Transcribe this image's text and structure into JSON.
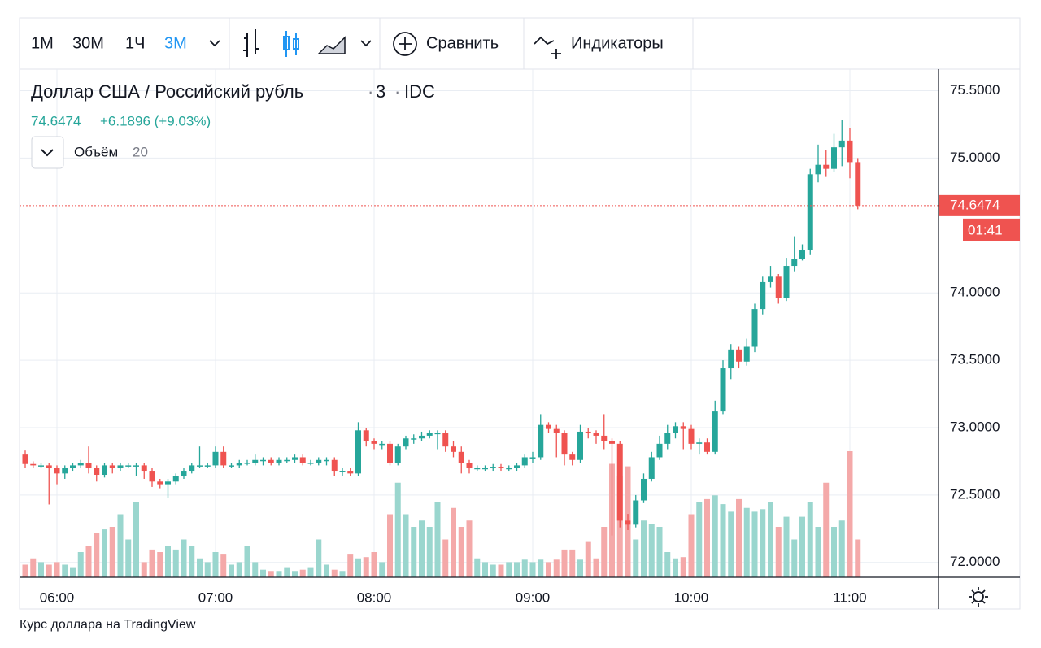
{
  "toolbar": {
    "intervals": [
      "1M",
      "30M",
      "1Ч",
      "3M"
    ],
    "compare": "Сравнить",
    "indicators": "Индикаторы"
  },
  "caption": "Курс доллара на TradingView",
  "chart_data": {
    "type": "candlestick",
    "title": "Доллар США / Российский рубль",
    "interval": "3",
    "source": "IDC",
    "change": "+6.1896 (+9.03%)",
    "volume_label": "Объём",
    "volume_length": "20",
    "countdown": "01:41",
    "up_color": "#26a69a",
    "down_color": "#ef5350",
    "volume_up_color": "#9ad6ce",
    "volume_down_color": "#f4a9a9",
    "grid": true,
    "ylim": [
      71.89,
      75.66
    ],
    "yticks": [
      {
        "value": 72,
        "label": "72.0000"
      },
      {
        "value": 72.5,
        "label": "72.5000"
      },
      {
        "value": 73,
        "label": "73.0000"
      },
      {
        "value": 73.5,
        "label": "73.5000"
      },
      {
        "value": 74,
        "label": "74.0000"
      },
      {
        "value": 75,
        "label": "75.0000"
      },
      {
        "value": 75.5,
        "label": "75.5000"
      }
    ],
    "xticks": [
      "06:00",
      "07:00",
      "08:00",
      "09:00",
      "10:00",
      "11:00"
    ],
    "x": [
      "05:48",
      "05:51",
      "05:54",
      "05:57",
      "06:00",
      "06:03",
      "06:06",
      "06:09",
      "06:12",
      "06:15",
      "06:18",
      "06:21",
      "06:24",
      "06:27",
      "06:30",
      "06:33",
      "06:36",
      "06:39",
      "06:42",
      "06:45",
      "06:48",
      "06:51",
      "06:54",
      "06:57",
      "07:00",
      "07:03",
      "07:06",
      "07:09",
      "07:12",
      "07:15",
      "07:18",
      "07:21",
      "07:24",
      "07:27",
      "07:30",
      "07:33",
      "07:36",
      "07:39",
      "07:42",
      "07:45",
      "07:48",
      "07:51",
      "07:54",
      "07:57",
      "08:00",
      "08:03",
      "08:06",
      "08:09",
      "08:12",
      "08:15",
      "08:18",
      "08:21",
      "08:24",
      "08:27",
      "08:30",
      "08:33",
      "08:36",
      "08:39",
      "08:42",
      "08:45",
      "08:48",
      "08:51",
      "08:54",
      "08:57",
      "09:00",
      "09:03",
      "09:06",
      "09:09",
      "09:12",
      "09:15",
      "09:18",
      "09:21",
      "09:24",
      "09:27",
      "09:30",
      "09:33",
      "09:36",
      "09:39",
      "09:42",
      "09:45",
      "09:48",
      "09:51",
      "09:54",
      "09:57",
      "10:00",
      "10:03",
      "10:06",
      "10:09",
      "10:12",
      "10:15",
      "10:18",
      "10:21",
      "10:24",
      "10:27",
      "10:30",
      "10:33",
      "10:36",
      "10:39",
      "10:42",
      "10:45",
      "10:48",
      "10:51",
      "10:54",
      "10:57",
      "11:00",
      "11:03"
    ],
    "open": [
      72.8,
      72.73,
      72.72,
      72.72,
      72.7,
      72.66,
      72.7,
      72.72,
      72.74,
      72.7,
      72.65,
      72.72,
      72.7,
      72.72,
      72.72,
      72.72,
      72.68,
      72.6,
      72.58,
      72.6,
      72.64,
      72.68,
      72.72,
      72.72,
      72.72,
      72.82,
      72.72,
      72.72,
      72.74,
      72.74,
      72.76,
      72.76,
      72.74,
      72.76,
      72.76,
      72.78,
      72.74,
      72.74,
      72.76,
      72.76,
      72.68,
      72.68,
      72.66,
      72.98,
      72.9,
      72.88,
      72.88,
      72.74,
      72.86,
      72.92,
      72.92,
      72.94,
      72.96,
      72.96,
      72.86,
      72.82,
      72.74,
      72.7,
      72.7,
      72.7,
      72.71,
      72.7,
      72.7,
      72.72,
      72.78,
      72.78,
      73.02,
      72.99,
      72.96,
      72.8,
      72.76,
      72.97,
      72.96,
      72.94,
      72.9,
      72.88,
      72.31,
      72.28,
      72.46,
      72.62,
      72.78,
      72.88,
      72.96,
      73.01,
      72.99,
      72.88,
      72.89,
      72.82,
      73.12,
      73.44,
      73.58,
      73.49,
      73.6,
      73.88,
      74.08,
      74.12,
      73.96,
      74.2,
      74.25,
      74.32,
      74.88,
      74.95,
      74.92,
      75.08,
      75.13,
      74.97
    ],
    "high": [
      72.83,
      72.75,
      72.74,
      72.74,
      72.72,
      72.72,
      72.74,
      72.76,
      72.86,
      72.72,
      72.74,
      72.74,
      72.74,
      72.74,
      72.74,
      72.74,
      72.7,
      72.62,
      72.62,
      72.66,
      72.7,
      72.74,
      72.86,
      72.74,
      72.86,
      72.86,
      72.74,
      72.76,
      72.76,
      72.8,
      72.78,
      72.78,
      72.78,
      72.78,
      72.8,
      72.8,
      72.76,
      72.78,
      72.78,
      72.78,
      72.7,
      72.7,
      73.04,
      73.0,
      72.92,
      72.9,
      72.9,
      72.88,
      72.94,
      72.95,
      72.97,
      72.98,
      72.98,
      72.98,
      72.9,
      72.86,
      72.76,
      72.72,
      72.72,
      72.73,
      72.73,
      72.72,
      72.74,
      72.8,
      72.82,
      73.1,
      73.04,
      73.02,
      72.98,
      72.82,
      73.02,
      73.0,
      72.98,
      73.1,
      72.92,
      72.9,
      72.36,
      72.5,
      72.66,
      72.82,
      72.94,
      73.02,
      73.04,
      73.04,
      73.02,
      72.92,
      72.92,
      73.2,
      73.5,
      73.62,
      73.6,
      73.66,
      73.92,
      74.12,
      74.2,
      74.14,
      74.26,
      74.42,
      74.36,
      74.92,
      75.1,
      75.06,
      75.18,
      75.28,
      75.22,
      75.0
    ],
    "low": [
      72.7,
      72.7,
      72.7,
      72.43,
      72.58,
      72.62,
      72.68,
      72.7,
      72.66,
      72.6,
      72.63,
      72.66,
      72.68,
      72.7,
      72.64,
      72.62,
      72.56,
      72.55,
      72.48,
      72.58,
      72.62,
      72.66,
      72.7,
      72.7,
      72.7,
      72.7,
      72.7,
      72.7,
      72.72,
      72.72,
      72.72,
      72.72,
      72.72,
      72.74,
      72.74,
      72.72,
      72.72,
      72.72,
      72.72,
      72.64,
      72.64,
      72.64,
      72.64,
      72.86,
      72.84,
      72.84,
      72.72,
      72.72,
      72.84,
      72.88,
      72.9,
      72.92,
      72.84,
      72.82,
      72.78,
      72.66,
      72.66,
      72.68,
      72.68,
      72.68,
      72.68,
      72.68,
      72.68,
      72.7,
      72.74,
      72.76,
      72.96,
      72.78,
      72.72,
      72.72,
      72.74,
      72.92,
      72.88,
      72.84,
      72.2,
      72.26,
      72.24,
      72.26,
      72.44,
      72.6,
      72.76,
      72.84,
      72.92,
      72.84,
      72.84,
      72.8,
      72.8,
      72.8,
      73.1,
      73.36,
      73.44,
      73.46,
      73.56,
      73.84,
      74.04,
      73.92,
      73.94,
      74.16,
      74.24,
      74.28,
      74.82,
      74.86,
      74.9,
      74.94,
      74.85,
      74.62
    ],
    "close": [
      72.73,
      72.72,
      72.72,
      72.7,
      72.66,
      72.7,
      72.72,
      72.74,
      72.7,
      72.65,
      72.72,
      72.7,
      72.72,
      72.72,
      72.72,
      72.68,
      72.6,
      72.58,
      72.6,
      72.64,
      72.68,
      72.72,
      72.72,
      72.72,
      72.82,
      72.72,
      72.72,
      72.74,
      72.74,
      72.76,
      72.76,
      72.74,
      72.76,
      72.76,
      72.78,
      72.74,
      72.74,
      72.76,
      72.76,
      72.68,
      72.68,
      72.66,
      72.98,
      72.9,
      72.88,
      72.88,
      72.74,
      72.86,
      72.92,
      72.92,
      72.94,
      72.96,
      72.96,
      72.86,
      72.82,
      72.74,
      72.7,
      72.7,
      72.7,
      72.71,
      72.7,
      72.7,
      72.72,
      72.78,
      72.78,
      73.02,
      72.99,
      72.96,
      72.8,
      72.76,
      72.97,
      72.96,
      72.94,
      72.9,
      72.88,
      72.31,
      72.28,
      72.46,
      72.62,
      72.78,
      72.88,
      72.96,
      73.01,
      72.99,
      72.88,
      72.89,
      72.82,
      73.12,
      73.44,
      73.58,
      73.49,
      73.6,
      73.88,
      74.08,
      74.12,
      73.96,
      74.2,
      74.25,
      74.32,
      74.88,
      74.95,
      74.92,
      75.08,
      75.13,
      74.97,
      74.6474
    ],
    "volume": [
      10,
      15,
      12,
      10,
      12,
      10,
      8,
      20,
      25,
      35,
      38,
      40,
      50,
      30,
      60,
      12,
      22,
      20,
      25,
      22,
      30,
      25,
      15,
      12,
      20,
      18,
      10,
      12,
      25,
      12,
      6,
      5,
      5,
      8,
      5,
      6,
      8,
      30,
      10,
      6,
      5,
      18,
      15,
      16,
      20,
      12,
      50,
      75,
      50,
      40,
      45,
      40,
      60,
      30,
      55,
      40,
      45,
      15,
      12,
      10,
      10,
      12,
      12,
      14,
      12,
      14,
      12,
      14,
      22,
      22,
      14,
      28,
      15,
      40,
      90,
      80,
      88,
      30,
      45,
      42,
      40,
      20,
      15,
      16,
      50,
      60,
      62,
      65,
      58,
      52,
      62,
      55,
      52,
      54,
      60,
      40,
      48,
      30,
      48,
      60,
      40,
      75,
      40,
      45,
      100,
      30
    ]
  }
}
